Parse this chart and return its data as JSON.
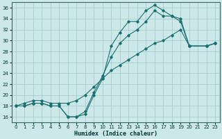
{
  "bg_color": "#cce8e8",
  "grid_color": "#aacccc",
  "line_color": "#1a7070",
  "xlabel": "Humidex (Indice chaleur)",
  "xlim": [
    -0.5,
    23.5
  ],
  "ylim": [
    15.0,
    37.0
  ],
  "yticks": [
    16,
    18,
    20,
    22,
    24,
    26,
    28,
    30,
    32,
    34,
    36
  ],
  "xticks": [
    0,
    1,
    2,
    3,
    4,
    5,
    6,
    7,
    8,
    9,
    10,
    11,
    12,
    13,
    14,
    15,
    16,
    17,
    18,
    19,
    20,
    21,
    22,
    23
  ],
  "line1_x": [
    0,
    1,
    2,
    3,
    4,
    5,
    6,
    7,
    8,
    9,
    10,
    11,
    12,
    13,
    14,
    15,
    16,
    17,
    18,
    19,
    20,
    22,
    23
  ],
  "line1_y": [
    18,
    18,
    18.5,
    18.5,
    18,
    18,
    16,
    16,
    16.5,
    20,
    23,
    29,
    31.5,
    33.5,
    33.5,
    35.5,
    36.5,
    35.5,
    34.5,
    34,
    29,
    29,
    29.5
  ],
  "line2_x": [
    0,
    1,
    2,
    3,
    4,
    5,
    6,
    7,
    8,
    9,
    10,
    11,
    12,
    13,
    14,
    15,
    16,
    17,
    18,
    19,
    20,
    22,
    23
  ],
  "line2_y": [
    18,
    18,
    18.5,
    18.5,
    18,
    18,
    16,
    16,
    17,
    20.5,
    23.5,
    27,
    29.5,
    31,
    32,
    33.5,
    35.5,
    34.5,
    34.5,
    33.5,
    29,
    29,
    29.5
  ],
  "line3_x": [
    0,
    1,
    2,
    3,
    4,
    5,
    6,
    7,
    8,
    9,
    10,
    11,
    12,
    13,
    14,
    15,
    16,
    17,
    18,
    19,
    20,
    22,
    23
  ],
  "line3_y": [
    18,
    18.5,
    19,
    19,
    18.5,
    18.5,
    18.5,
    19,
    20,
    21.5,
    23,
    24.5,
    25.5,
    26.5,
    27.5,
    28.5,
    29.5,
    30.0,
    31.0,
    32.0,
    29,
    29,
    29.5
  ]
}
